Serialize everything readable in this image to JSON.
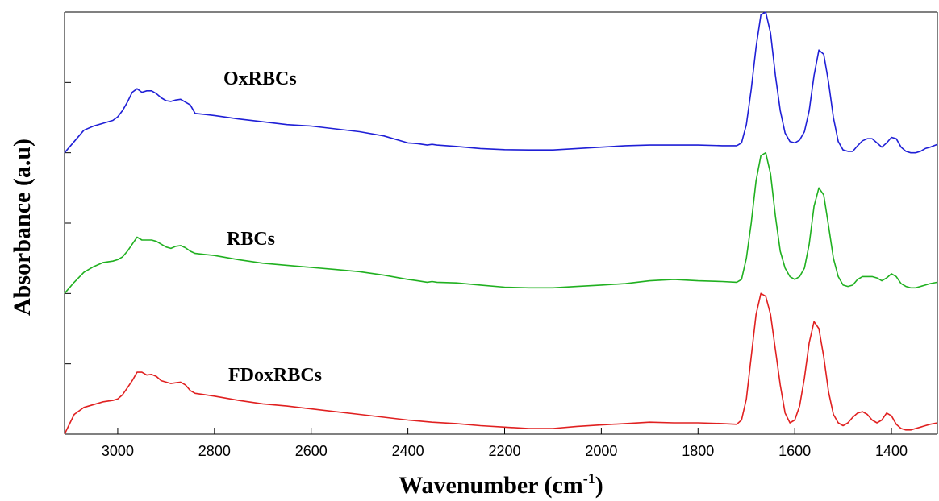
{
  "chart_data": {
    "type": "line",
    "xlabel": "Wavenumber (cm",
    "xlabel_sup": "-1",
    "xlabel_tail": ")",
    "ylabel": "Absorbance (a.u)",
    "xlim": [
      3110,
      1305
    ],
    "x_reversed": true,
    "ylim": [
      0,
      3
    ],
    "x_ticks": [
      3000,
      2800,
      2600,
      2400,
      2200,
      2000,
      1800,
      1600,
      1400
    ],
    "x_tick_labels": [
      "3000",
      "2800",
      "2600",
      "2400",
      "2200",
      "2000",
      "1800",
      "1600",
      "1400"
    ],
    "y_ticks": [
      0.5,
      1,
      1.5,
      2,
      2.5,
      3
    ],
    "y_tick_labels_shown": false,
    "grid": false,
    "legend": "none",
    "series": [
      {
        "name": "OxRBCs",
        "color": "#1f1fd6",
        "x": [
          3110,
          3090,
          3070,
          3050,
          3030,
          3010,
          3000,
          2990,
          2980,
          2970,
          2960,
          2950,
          2940,
          2930,
          2920,
          2910,
          2900,
          2890,
          2880,
          2870,
          2860,
          2850,
          2840,
          2800,
          2750,
          2700,
          2650,
          2600,
          2550,
          2500,
          2450,
          2400,
          2380,
          2360,
          2350,
          2340,
          2300,
          2250,
          2200,
          2150,
          2100,
          2050,
          2000,
          1950,
          1900,
          1850,
          1800,
          1750,
          1720,
          1710,
          1700,
          1690,
          1680,
          1670,
          1660,
          1650,
          1640,
          1630,
          1620,
          1610,
          1600,
          1590,
          1580,
          1570,
          1560,
          1550,
          1540,
          1530,
          1520,
          1510,
          1500,
          1490,
          1480,
          1470,
          1460,
          1450,
          1440,
          1430,
          1420,
          1410,
          1400,
          1390,
          1380,
          1370,
          1360,
          1350,
          1340,
          1330,
          1320,
          1305
        ],
        "y": [
          2.0,
          2.08,
          2.16,
          2.19,
          2.21,
          2.23,
          2.255,
          2.3,
          2.36,
          2.43,
          2.455,
          2.43,
          2.44,
          2.44,
          2.42,
          2.39,
          2.37,
          2.365,
          2.375,
          2.38,
          2.36,
          2.34,
          2.28,
          2.265,
          2.24,
          2.22,
          2.2,
          2.19,
          2.17,
          2.15,
          2.12,
          2.07,
          2.065,
          2.055,
          2.06,
          2.055,
          2.045,
          2.03,
          2.022,
          2.02,
          2.02,
          2.03,
          2.04,
          2.05,
          2.055,
          2.055,
          2.055,
          2.05,
          2.05,
          2.07,
          2.2,
          2.45,
          2.75,
          2.98,
          3.0,
          2.85,
          2.55,
          2.3,
          2.14,
          2.08,
          2.07,
          2.09,
          2.15,
          2.3,
          2.55,
          2.73,
          2.7,
          2.5,
          2.25,
          2.08,
          2.02,
          2.01,
          2.01,
          2.05,
          2.085,
          2.1,
          2.1,
          2.07,
          2.04,
          2.07,
          2.11,
          2.1,
          2.04,
          2.01,
          2.0,
          2.0,
          2.01,
          2.03,
          2.04,
          2.06
        ]
      },
      {
        "name": "RBCs",
        "color": "#20b020",
        "x": [
          3110,
          3090,
          3070,
          3050,
          3030,
          3010,
          3000,
          2990,
          2980,
          2970,
          2960,
          2950,
          2940,
          2930,
          2920,
          2910,
          2900,
          2890,
          2880,
          2870,
          2860,
          2850,
          2840,
          2800,
          2750,
          2700,
          2650,
          2600,
          2550,
          2500,
          2450,
          2400,
          2380,
          2360,
          2350,
          2340,
          2300,
          2250,
          2200,
          2150,
          2100,
          2050,
          2000,
          1950,
          1900,
          1850,
          1800,
          1750,
          1720,
          1710,
          1700,
          1690,
          1680,
          1670,
          1660,
          1650,
          1640,
          1630,
          1620,
          1610,
          1600,
          1590,
          1580,
          1570,
          1560,
          1550,
          1540,
          1530,
          1520,
          1510,
          1500,
          1490,
          1480,
          1470,
          1460,
          1450,
          1440,
          1430,
          1420,
          1410,
          1400,
          1390,
          1380,
          1370,
          1360,
          1350,
          1340,
          1330,
          1320,
          1305
        ],
        "y": [
          1.0,
          1.08,
          1.15,
          1.19,
          1.22,
          1.23,
          1.24,
          1.26,
          1.3,
          1.35,
          1.4,
          1.38,
          1.38,
          1.38,
          1.37,
          1.35,
          1.33,
          1.32,
          1.335,
          1.34,
          1.325,
          1.3,
          1.285,
          1.27,
          1.24,
          1.215,
          1.2,
          1.185,
          1.17,
          1.155,
          1.13,
          1.1,
          1.09,
          1.08,
          1.085,
          1.08,
          1.075,
          1.06,
          1.045,
          1.04,
          1.04,
          1.05,
          1.06,
          1.07,
          1.09,
          1.1,
          1.09,
          1.085,
          1.08,
          1.1,
          1.25,
          1.5,
          1.8,
          1.98,
          2.0,
          1.85,
          1.55,
          1.3,
          1.18,
          1.12,
          1.1,
          1.12,
          1.18,
          1.35,
          1.62,
          1.75,
          1.7,
          1.48,
          1.25,
          1.12,
          1.06,
          1.05,
          1.06,
          1.1,
          1.12,
          1.12,
          1.12,
          1.11,
          1.09,
          1.11,
          1.14,
          1.12,
          1.07,
          1.05,
          1.04,
          1.04,
          1.05,
          1.06,
          1.07,
          1.08
        ]
      },
      {
        "name": "FDoxRBCs",
        "color": "#e02020",
        "x": [
          3110,
          3090,
          3070,
          3050,
          3030,
          3010,
          3000,
          2990,
          2980,
          2970,
          2960,
          2950,
          2940,
          2930,
          2920,
          2910,
          2900,
          2890,
          2880,
          2870,
          2860,
          2850,
          2840,
          2800,
          2750,
          2700,
          2650,
          2600,
          2550,
          2500,
          2450,
          2400,
          2350,
          2300,
          2250,
          2200,
          2150,
          2100,
          2050,
          2000,
          1950,
          1900,
          1850,
          1800,
          1750,
          1720,
          1710,
          1700,
          1690,
          1680,
          1670,
          1660,
          1650,
          1640,
          1630,
          1620,
          1610,
          1600,
          1590,
          1580,
          1570,
          1560,
          1550,
          1540,
          1530,
          1520,
          1510,
          1500,
          1490,
          1480,
          1470,
          1460,
          1450,
          1440,
          1430,
          1420,
          1410,
          1400,
          1390,
          1380,
          1370,
          1360,
          1350,
          1340,
          1330,
          1320,
          1305
        ],
        "y": [
          0.0,
          0.14,
          0.19,
          0.21,
          0.23,
          0.24,
          0.25,
          0.28,
          0.33,
          0.38,
          0.44,
          0.44,
          0.42,
          0.425,
          0.41,
          0.38,
          0.37,
          0.36,
          0.365,
          0.37,
          0.35,
          0.31,
          0.29,
          0.27,
          0.24,
          0.215,
          0.2,
          0.18,
          0.16,
          0.14,
          0.12,
          0.1,
          0.085,
          0.075,
          0.06,
          0.05,
          0.04,
          0.04,
          0.055,
          0.065,
          0.075,
          0.085,
          0.08,
          0.08,
          0.075,
          0.07,
          0.1,
          0.25,
          0.55,
          0.85,
          1.0,
          0.98,
          0.85,
          0.6,
          0.35,
          0.15,
          0.08,
          0.1,
          0.2,
          0.4,
          0.65,
          0.8,
          0.75,
          0.55,
          0.3,
          0.14,
          0.08,
          0.06,
          0.08,
          0.12,
          0.15,
          0.16,
          0.14,
          0.1,
          0.08,
          0.1,
          0.15,
          0.13,
          0.07,
          0.04,
          0.03,
          0.03,
          0.04,
          0.05,
          0.06,
          0.07,
          0.08
        ]
      }
    ],
    "series_labels": [
      {
        "text": "OxRBCs",
        "series": 0
      },
      {
        "text": "RBCs",
        "series": 1
      },
      {
        "text": "FDoxRBCs",
        "series": 2
      }
    ]
  }
}
